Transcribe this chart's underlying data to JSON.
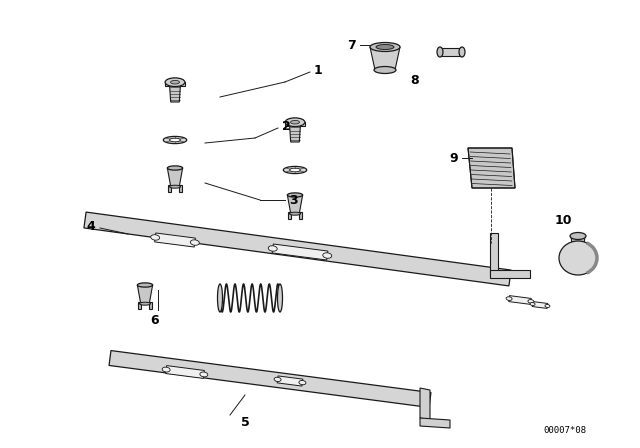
{
  "background_color": "#ffffff",
  "line_color": "#1a1a1a",
  "label_color": "#000000",
  "part_number_label": "00007*08",
  "fig_width": 6.4,
  "fig_height": 4.48,
  "dpi": 100
}
